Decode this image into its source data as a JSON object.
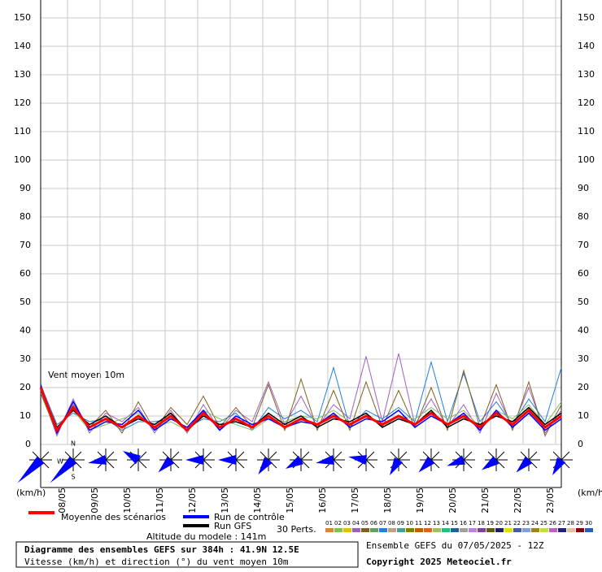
{
  "chart_data": {
    "type": "line",
    "series_title": "Vent moyen 10m",
    "y_unit": "(km/h)",
    "title": "Diagramme des ensembles GEFS sur 384h : 41.9N 12.5E",
    "subtitle": "Vitesse (km/h) et direction (°) du vent moyen 10m",
    "altitude": "Altitude du modele : 141m",
    "run_label": "Ensemble GEFS du 07/05/2025 - 12Z",
    "copyright": "Copyright 2025 Meteociel.fr",
    "members_title": "30 Perts.",
    "compass": [
      "N",
      "W",
      "S"
    ],
    "x": [
      0,
      12,
      24,
      36,
      48,
      60,
      72,
      84,
      96,
      108,
      120,
      132,
      144,
      156,
      168,
      180,
      192,
      204,
      216,
      228,
      240,
      252,
      264,
      276,
      288,
      300,
      312,
      324,
      336,
      348,
      360,
      372,
      384
    ],
    "xlim": [
      0,
      384
    ],
    "xticks": [
      {
        "value": 12,
        "label": "08/05"
      },
      {
        "value": 36,
        "label": "09/05"
      },
      {
        "value": 60,
        "label": "10/05"
      },
      {
        "value": 84,
        "label": "11/05"
      },
      {
        "value": 108,
        "label": "12/05"
      },
      {
        "value": 132,
        "label": "13/05"
      },
      {
        "value": 156,
        "label": "14/05"
      },
      {
        "value": 180,
        "label": "15/05"
      },
      {
        "value": 204,
        "label": "16/05"
      },
      {
        "value": 228,
        "label": "17/05"
      },
      {
        "value": 252,
        "label": "18/05"
      },
      {
        "value": 276,
        "label": "19/05"
      },
      {
        "value": 300,
        "label": "20/05"
      },
      {
        "value": 324,
        "label": "21/05"
      },
      {
        "value": 348,
        "label": "22/05"
      },
      {
        "value": 372,
        "label": "23/05"
      }
    ],
    "ylim": [
      0,
      150
    ],
    "yticks": [
      0,
      10,
      20,
      30,
      40,
      50,
      60,
      70,
      80,
      90,
      100,
      110,
      120,
      130,
      140,
      150
    ],
    "grid": true,
    "series": [
      {
        "name": "Moyenne des scénarios",
        "color": "#ff0000",
        "values": [
          20,
          5,
          13,
          6,
          9,
          6,
          10,
          6,
          10,
          5,
          11,
          6,
          9,
          6,
          10,
          6,
          9,
          7,
          10,
          7,
          10,
          7,
          10,
          7,
          11,
          7,
          10,
          6,
          11,
          7,
          12,
          6,
          10
        ]
      },
      {
        "name": "Run de contrôle",
        "color": "#0000ff",
        "values": [
          21,
          4,
          15,
          5,
          8,
          7,
          12,
          5,
          9,
          6,
          12,
          5,
          10,
          7,
          9,
          6,
          8,
          7,
          11,
          6,
          9,
          8,
          12,
          6,
          10,
          7,
          11,
          5,
          12,
          6,
          11,
          5,
          9
        ]
      },
      {
        "name": "Run GFS",
        "color": "#000000",
        "values": [
          20,
          6,
          12,
          7,
          10,
          6,
          9,
          7,
          11,
          5,
          10,
          7,
          8,
          6,
          11,
          7,
          10,
          6,
          9,
          8,
          11,
          6,
          9,
          7,
          12,
          6,
          9,
          7,
          10,
          8,
          13,
          7,
          11
        ]
      }
    ],
    "perturbations": [
      {
        "color": "#a060c0",
        "values": [
          19,
          3,
          16,
          4,
          11,
          8,
          13,
          4,
          12,
          4,
          14,
          5,
          12,
          8,
          22,
          7,
          17,
          6,
          14,
          9,
          31,
          8,
          32,
          7,
          16,
          6,
          14,
          4,
          18,
          6,
          20,
          4,
          12
        ]
      },
      {
        "color": "#2080e0",
        "values": [
          21,
          7,
          11,
          8,
          9,
          5,
          8,
          8,
          9,
          6,
          9,
          8,
          11,
          5,
          13,
          9,
          12,
          8,
          27,
          6,
          12,
          9,
          13,
          8,
          29,
          8,
          25,
          8,
          15,
          7,
          16,
          8,
          27
        ]
      },
      {
        "color": "#806020",
        "values": [
          18,
          4,
          14,
          6,
          12,
          4,
          15,
          5,
          13,
          7,
          17,
          6,
          13,
          6,
          21,
          5,
          23,
          5,
          19,
          5,
          22,
          6,
          19,
          6,
          20,
          5,
          26,
          6,
          21,
          5,
          22,
          3,
          14
        ]
      },
      {
        "color": "#80c060",
        "values": [
          20,
          6,
          12,
          5,
          7,
          9,
          11,
          6,
          8,
          5,
          12,
          9,
          7,
          5,
          9,
          8,
          10,
          9,
          12,
          8,
          11,
          6,
          10,
          9,
          13,
          9,
          12,
          6,
          12,
          9,
          14,
          7,
          15
        ]
      }
    ],
    "directions": {
      "x": [
        0,
        24,
        48,
        72,
        96,
        120,
        144,
        168,
        192,
        216,
        240,
        264,
        288,
        312,
        336,
        360,
        384
      ],
      "values": [
        225,
        225,
        260,
        300,
        225,
        270,
        270,
        215,
        240,
        260,
        280,
        210,
        225,
        250,
        235,
        225,
        210
      ]
    },
    "members": [
      {
        "label": "01",
        "color": "#e08040"
      },
      {
        "label": "02",
        "color": "#80c060"
      },
      {
        "label": "03",
        "color": "#e0c000"
      },
      {
        "label": "04",
        "color": "#a060c0"
      },
      {
        "label": "05",
        "color": "#806020"
      },
      {
        "label": "06",
        "color": "#60a060"
      },
      {
        "label": "07",
        "color": "#2080e0"
      },
      {
        "label": "08",
        "color": "#c0a080"
      },
      {
        "label": "09",
        "color": "#40a0a0"
      },
      {
        "label": "10",
        "color": "#808000"
      },
      {
        "label": "11",
        "color": "#c06000"
      },
      {
        "label": "12",
        "color": "#e06020"
      },
      {
        "label": "13",
        "color": "#a0c060"
      },
      {
        "label": "14",
        "color": "#20c080"
      },
      {
        "label": "15",
        "color": "#2060a0"
      },
      {
        "label": "16",
        "color": "#a0a0a0"
      },
      {
        "label": "17",
        "color": "#c080e0"
      },
      {
        "label": "18",
        "color": "#8040a0"
      },
      {
        "label": "19",
        "color": "#606000"
      },
      {
        "label": "20",
        "color": "#202060"
      },
      {
        "label": "21",
        "color": "#e0e000"
      },
      {
        "label": "22",
        "color": "#4060a0"
      },
      {
        "label": "23",
        "color": "#80a0e0"
      },
      {
        "label": "24",
        "color": "#a08020"
      },
      {
        "label": "25",
        "color": "#c0e040"
      },
      {
        "label": "26",
        "color": "#c060c0"
      },
      {
        "label": "27",
        "color": "#202080"
      },
      {
        "label": "28",
        "color": "#e0c0a0"
      },
      {
        "label": "29",
        "color": "#800000"
      },
      {
        "label": "30",
        "color": "#2060c0"
      }
    ]
  }
}
